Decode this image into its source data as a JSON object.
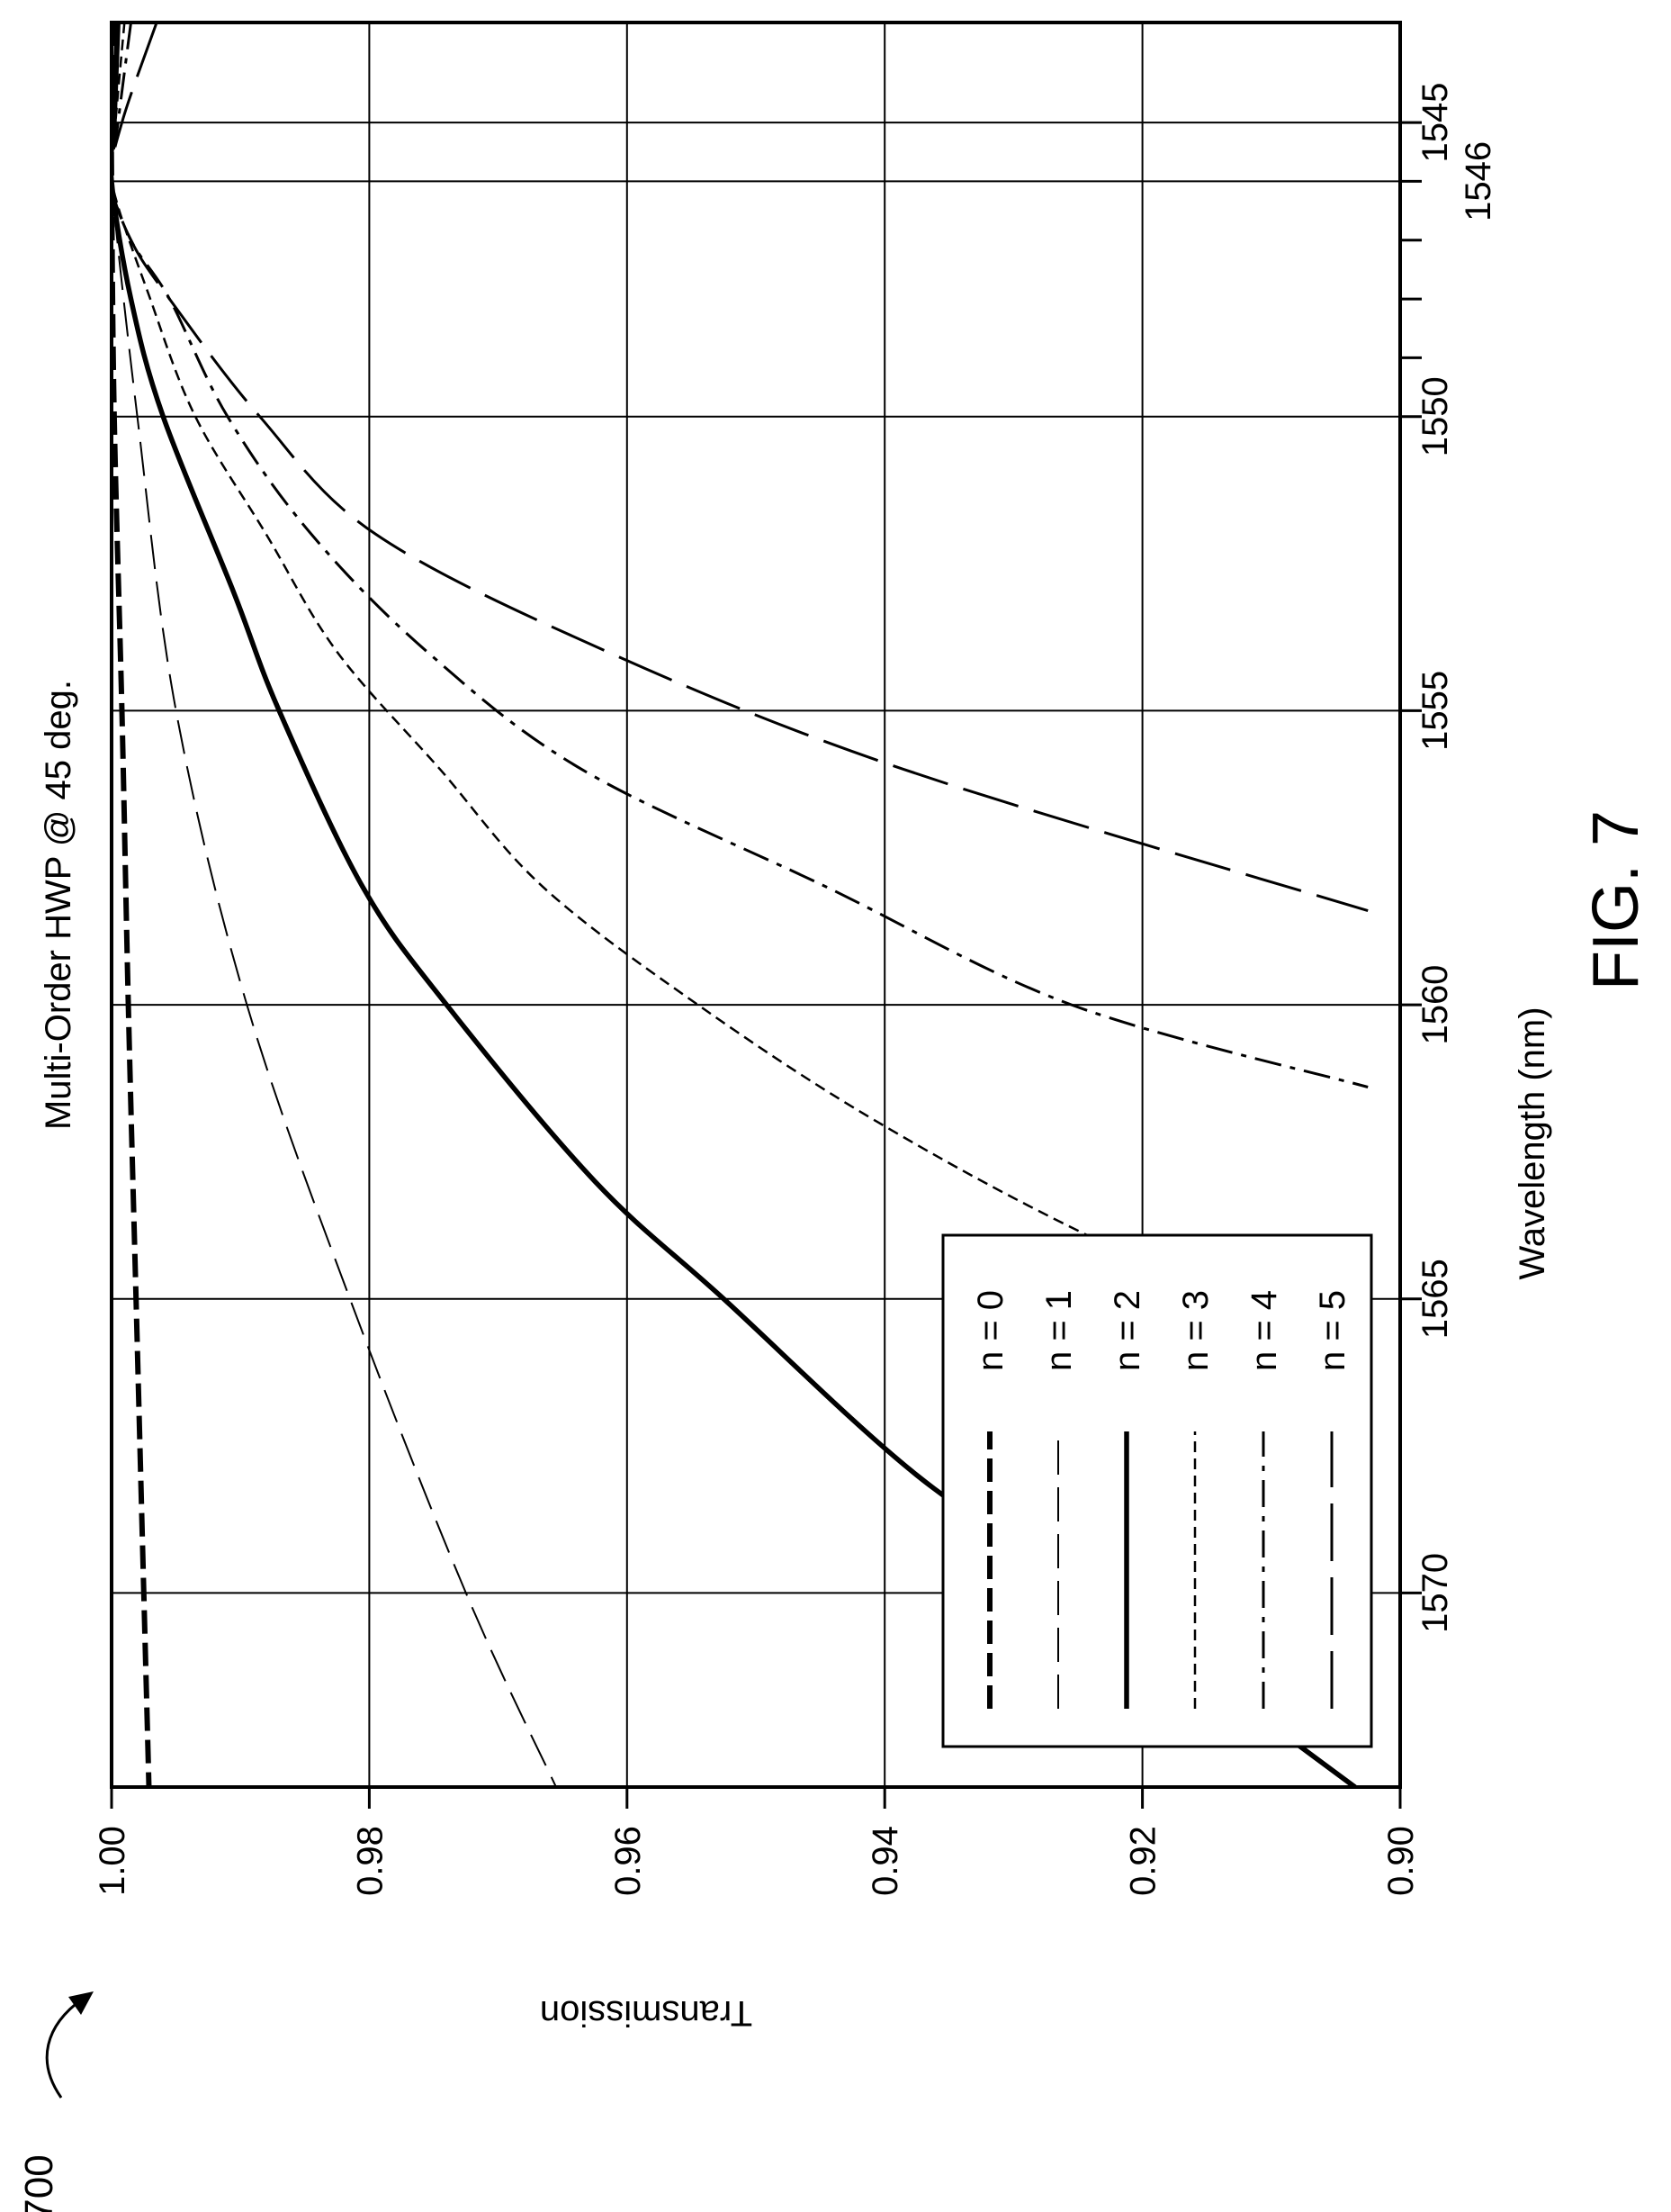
{
  "figure": {
    "ref_numeral": "700",
    "caption": "FIG. 7"
  },
  "chart_data": {
    "type": "line",
    "title": "Multi-Order HWP @ 45 deg.",
    "xlabel": "Wavelength (nm)",
    "ylabel": "Transmission",
    "xlim": [
      1543.3,
      1573.3
    ],
    "ylim": [
      0.9,
      1.0
    ],
    "x_ticks": [
      "1545",
      "1546",
      "1550",
      "1555",
      "1560",
      "1565",
      "1570"
    ],
    "x_tick_values": [
      1545,
      1546,
      1550,
      1555,
      1560,
      1565,
      1570
    ],
    "x_minor_ticks": [
      1547,
      1548,
      1549
    ],
    "y_ticks": [
      "1.00",
      "0.98",
      "0.96",
      "0.94",
      "0.92",
      "0.90"
    ],
    "y_tick_values": [
      1.0,
      0.98,
      0.96,
      0.94,
      0.92,
      0.9
    ],
    "grid": true,
    "legend_position": "bottom-left",
    "series": [
      {
        "name": "n = 0",
        "style": "heavy-dash",
        "x": [
          1543.3,
          1545,
          1546,
          1550,
          1555,
          1560,
          1565,
          1570,
          1573.3
        ],
        "y": [
          0.9999,
          1.0,
          1.0,
          0.9998,
          0.9992,
          0.9987,
          0.9981,
          0.9975,
          0.9971
        ]
      },
      {
        "name": "n = 1",
        "style": "thin-long-dash",
        "x": [
          1543.3,
          1545,
          1546,
          1550,
          1555,
          1560,
          1565,
          1570,
          1573.3
        ],
        "y": [
          0.9997,
          0.9999,
          1.0,
          0.998,
          0.995,
          0.9895,
          0.9815,
          0.9725,
          0.9655
        ]
      },
      {
        "name": "n = 2",
        "style": "thick-solid",
        "x": [
          1543.3,
          1545,
          1546,
          1548,
          1550,
          1553,
          1555,
          1558,
          1560,
          1563,
          1565,
          1568,
          1570,
          1573.3
        ],
        "y": [
          0.9995,
          0.9998,
          1.0,
          0.9985,
          0.996,
          0.9905,
          0.987,
          0.9805,
          0.974,
          0.9625,
          0.9525,
          0.9375,
          0.924,
          0.9035
        ]
      },
      {
        "name": "n = 3",
        "style": "short-dash",
        "x": [
          1543.3,
          1545,
          1546,
          1548,
          1550,
          1552,
          1554,
          1556,
          1558,
          1560,
          1562,
          1564,
          1566
        ],
        "y": [
          0.999,
          0.9997,
          1.0,
          0.997,
          0.9935,
          0.988,
          0.9825,
          0.9745,
          0.9665,
          0.9545,
          0.9405,
          0.9235,
          0.9025
        ]
      },
      {
        "name": "n = 4",
        "style": "dash-dot",
        "x": [
          1543.3,
          1545,
          1546,
          1547,
          1548,
          1550,
          1552,
          1554,
          1556,
          1558,
          1560,
          1561.4
        ],
        "y": [
          0.9985,
          0.9995,
          1.0,
          0.9985,
          0.9955,
          0.991,
          0.9845,
          0.9755,
          0.9635,
          0.9445,
          0.9255,
          0.9025
        ]
      },
      {
        "name": "n = 5",
        "style": "long-dash",
        "x": [
          1543.3,
          1545,
          1546,
          1547,
          1548,
          1550,
          1552,
          1554,
          1556,
          1558.4
        ],
        "y": [
          0.9965,
          0.9992,
          1.0,
          0.9985,
          0.9955,
          0.9885,
          0.9795,
          0.9615,
          0.9385,
          0.9025
        ]
      }
    ]
  }
}
